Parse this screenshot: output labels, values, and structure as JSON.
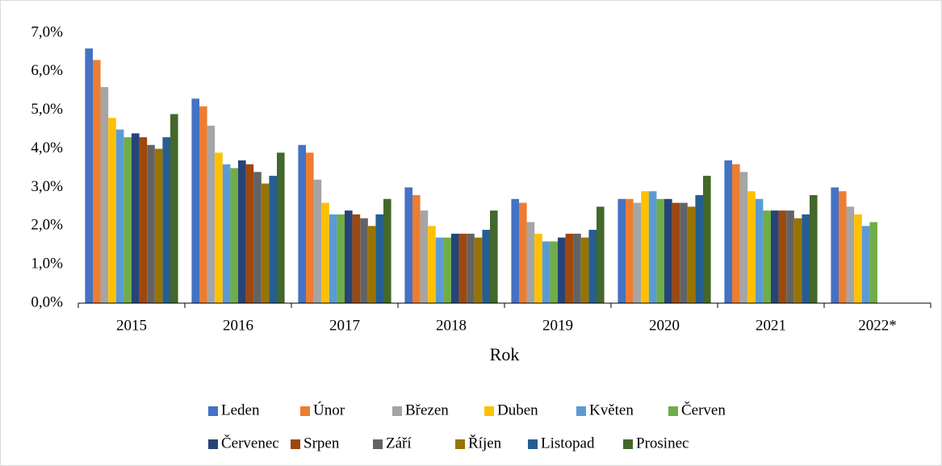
{
  "chart_data": {
    "type": "bar",
    "x_label": "Rok",
    "categories": [
      "2015",
      "2016",
      "2017",
      "2018",
      "2019",
      "2020",
      "2021",
      "2022*"
    ],
    "ylim": [
      0,
      7
    ],
    "yticks": [
      {
        "value": 0,
        "label": "0,0%"
      },
      {
        "value": 1,
        "label": "1,0%"
      },
      {
        "value": 2,
        "label": "2,0%"
      },
      {
        "value": 3,
        "label": "3,0%"
      },
      {
        "value": 4,
        "label": "4,0%"
      },
      {
        "value": 5,
        "label": "5,0%"
      },
      {
        "value": 6,
        "label": "6,0%"
      },
      {
        "value": 7,
        "label": "7,0%"
      }
    ],
    "grid": false,
    "legend": "bottom",
    "series": [
      {
        "name": "Leden",
        "color": "#4472c4",
        "values": [
          6.6,
          5.3,
          4.1,
          3.0,
          2.7,
          2.7,
          3.7,
          3.0
        ]
      },
      {
        "name": "Únor",
        "color": "#ed7d31",
        "values": [
          6.3,
          5.1,
          3.9,
          2.8,
          2.6,
          2.7,
          3.6,
          2.9
        ]
      },
      {
        "name": "Březen",
        "color": "#a5a5a5",
        "values": [
          5.6,
          4.6,
          3.2,
          2.4,
          2.1,
          2.6,
          3.4,
          2.5
        ]
      },
      {
        "name": "Duben",
        "color": "#ffc000",
        "values": [
          4.8,
          3.9,
          2.6,
          2.0,
          1.8,
          2.9,
          2.9,
          2.3
        ]
      },
      {
        "name": "Květen",
        "color": "#5b9bd5",
        "values": [
          4.5,
          3.6,
          2.3,
          1.7,
          1.6,
          2.9,
          2.7,
          2.0
        ]
      },
      {
        "name": "Červen",
        "color": "#70ad47",
        "values": [
          4.3,
          3.5,
          2.3,
          1.7,
          1.6,
          2.7,
          2.4,
          2.1
        ]
      },
      {
        "name": "Červenec",
        "color": "#264478",
        "values": [
          4.4,
          3.7,
          2.4,
          1.8,
          1.7,
          2.7,
          2.4,
          null
        ]
      },
      {
        "name": "Srpen",
        "color": "#9e480e",
        "values": [
          4.3,
          3.6,
          2.3,
          1.8,
          1.8,
          2.6,
          2.4,
          null
        ]
      },
      {
        "name": "Září",
        "color": "#636363",
        "values": [
          4.1,
          3.4,
          2.2,
          1.8,
          1.8,
          2.6,
          2.4,
          null
        ]
      },
      {
        "name": "Říjen",
        "color": "#997300",
        "values": [
          4.0,
          3.1,
          2.0,
          1.7,
          1.7,
          2.5,
          2.2,
          null
        ]
      },
      {
        "name": "Listopad",
        "color": "#255e91",
        "values": [
          4.3,
          3.3,
          2.3,
          1.9,
          1.9,
          2.8,
          2.3,
          null
        ]
      },
      {
        "name": "Prosinec",
        "color": "#43682b",
        "values": [
          4.9,
          3.9,
          2.7,
          2.4,
          2.5,
          3.3,
          2.8,
          null
        ]
      }
    ]
  }
}
